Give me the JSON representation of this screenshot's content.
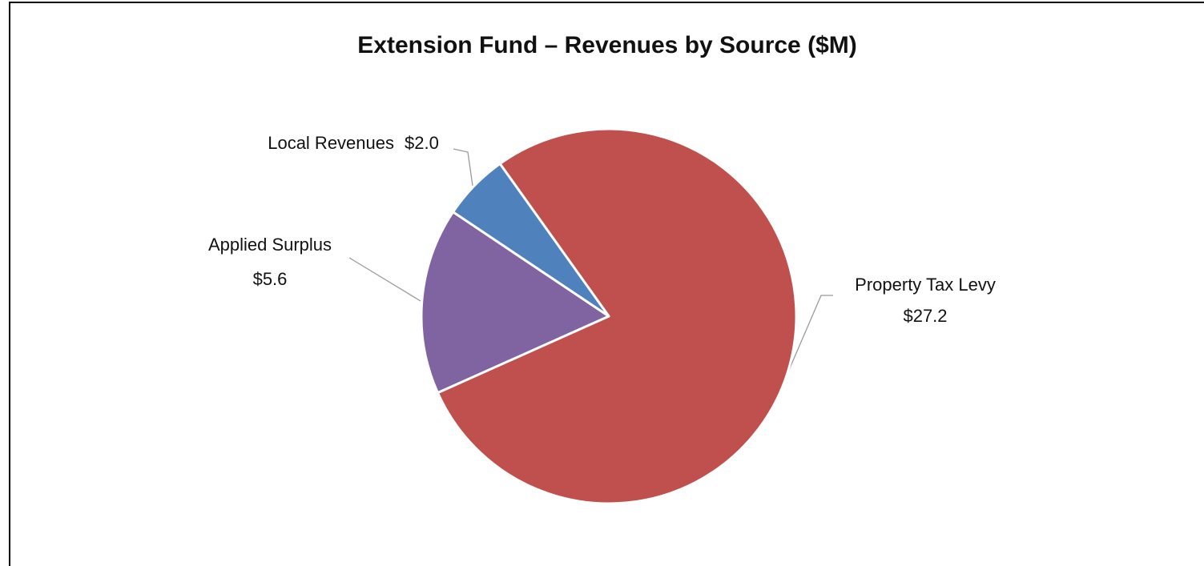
{
  "chart_data": {
    "type": "pie",
    "title": "Extension Fund – Revenues by Source ($M)",
    "categories": [
      "Property Tax Levy",
      "Applied Surplus",
      "Local Revenues"
    ],
    "values": [
      27.2,
      5.6,
      2.0
    ],
    "value_labels": [
      "$27.2",
      "$5.6",
      "$2.0"
    ],
    "colors": [
      "#c0504d",
      "#8064a2",
      "#4f81bd"
    ]
  }
}
